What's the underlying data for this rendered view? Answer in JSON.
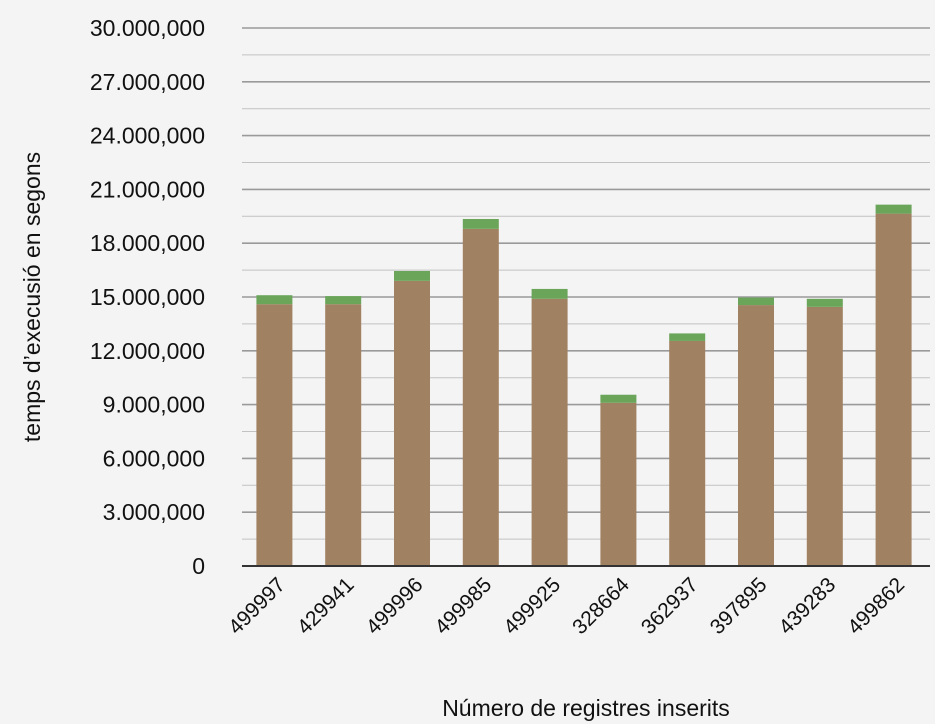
{
  "chart_data": {
    "type": "bar",
    "stacked": true,
    "categories": [
      "499997",
      "429941",
      "499996",
      "499985",
      "499925",
      "328664",
      "362937",
      "397895",
      "439283",
      "499862"
    ],
    "series": [
      {
        "color": "#a08262",
        "values": [
          14600000,
          14600000,
          15900000,
          18800000,
          14900000,
          9100000,
          12550000,
          14550000,
          14450000,
          19650000
        ]
      },
      {
        "color": "#6aa55a",
        "values": [
          500000,
          450000,
          550000,
          550000,
          550000,
          450000,
          420000,
          420000,
          450000,
          500000
        ]
      }
    ],
    "xlabel": "Número de registres inserits",
    "ylabel": "temps d’execusió en segons",
    "ylim": [
      0,
      30000000
    ],
    "yticks": [
      0,
      3000000,
      6000000,
      9000000,
      12000000,
      15000000,
      18000000,
      21000000,
      24000000,
      27000000,
      30000000
    ],
    "ytick_labels": [
      "0",
      "3.000,000",
      "6.000,000",
      "9.000,000",
      "12.000,000",
      "15.000,000",
      "18.000,000",
      "21.000,000",
      "24.000,000",
      "27.000,000",
      "30.000,000"
    ],
    "grid": true,
    "legend": "none"
  }
}
